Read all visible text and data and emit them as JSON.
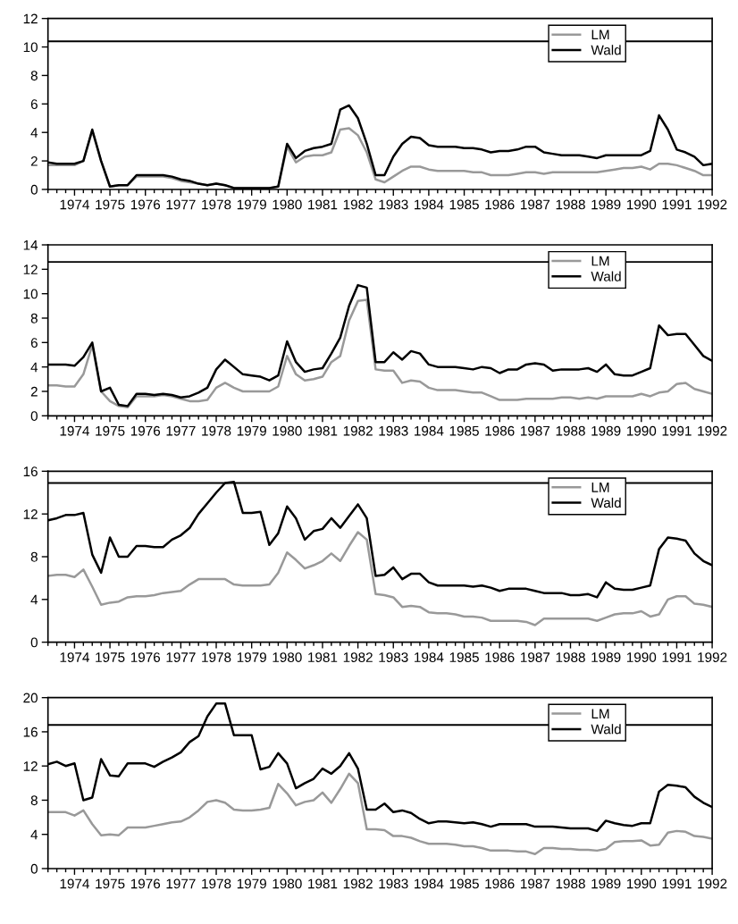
{
  "chart_data": [
    {
      "type": "line",
      "x": [
        1973.25,
        1973.5,
        1973.75,
        1974,
        1974.25,
        1974.5,
        1974.75,
        1975,
        1975.25,
        1975.5,
        1975.75,
        1976,
        1976.25,
        1976.5,
        1976.75,
        1977,
        1977.25,
        1977.5,
        1977.75,
        1978,
        1978.25,
        1978.5,
        1978.75,
        1979,
        1979.25,
        1979.5,
        1979.75,
        1980,
        1980.25,
        1980.5,
        1980.75,
        1981,
        1981.25,
        1981.5,
        1981.75,
        1982,
        1982.25,
        1982.5,
        1982.75,
        1983,
        1983.25,
        1983.5,
        1983.75,
        1984,
        1984.25,
        1984.5,
        1984.75,
        1985,
        1985.25,
        1985.5,
        1985.75,
        1986,
        1986.25,
        1986.5,
        1986.75,
        1987,
        1987.25,
        1987.5,
        1987.75,
        1988,
        1988.25,
        1988.5,
        1988.75,
        1989,
        1989.25,
        1989.5,
        1989.75,
        1990,
        1990.25,
        1990.5,
        1990.75,
        1991,
        1991.25,
        1991.5,
        1991.75,
        1992
      ],
      "series": [
        {
          "name": "LM",
          "color": "#999999",
          "values": [
            1.7,
            1.7,
            1.7,
            1.7,
            2.0,
            4.1,
            2.0,
            0.2,
            0.3,
            0.3,
            0.9,
            0.9,
            0.9,
            0.9,
            0.8,
            0.6,
            0.5,
            0.4,
            0.3,
            0.4,
            0.3,
            0.1,
            0.1,
            0.1,
            0.1,
            0.1,
            0.2,
            3.0,
            1.9,
            2.3,
            2.4,
            2.4,
            2.6,
            4.2,
            4.3,
            3.8,
            2.6,
            0.7,
            0.5,
            0.9,
            1.3,
            1.6,
            1.6,
            1.4,
            1.3,
            1.3,
            1.3,
            1.3,
            1.2,
            1.2,
            1.0,
            1.0,
            1.0,
            1.1,
            1.2,
            1.2,
            1.1,
            1.2,
            1.2,
            1.2,
            1.2,
            1.2,
            1.2,
            1.3,
            1.4,
            1.5,
            1.5,
            1.6,
            1.4,
            1.8,
            1.8,
            1.7,
            1.5,
            1.3,
            1.0,
            1.0
          ]
        },
        {
          "name": "Wald",
          "color": "#000000",
          "values": [
            1.9,
            1.8,
            1.8,
            1.8,
            2.0,
            4.2,
            2.0,
            0.2,
            0.3,
            0.3,
            1.0,
            1.0,
            1.0,
            1.0,
            0.9,
            0.7,
            0.6,
            0.4,
            0.3,
            0.4,
            0.3,
            0.1,
            0.1,
            0.1,
            0.1,
            0.1,
            0.2,
            3.2,
            2.2,
            2.7,
            2.9,
            3.0,
            3.2,
            5.6,
            5.9,
            5.0,
            3.2,
            1.0,
            1.0,
            2.3,
            3.2,
            3.7,
            3.6,
            3.1,
            3.0,
            3.0,
            3.0,
            2.9,
            2.9,
            2.8,
            2.6,
            2.7,
            2.7,
            2.8,
            3.0,
            3.0,
            2.6,
            2.5,
            2.4,
            2.4,
            2.4,
            2.3,
            2.2,
            2.4,
            2.4,
            2.4,
            2.4,
            2.4,
            2.7,
            5.2,
            4.2,
            2.8,
            2.6,
            2.3,
            1.7,
            1.8
          ]
        }
      ],
      "xlim": [
        1973.25,
        1992
      ],
      "xticks": [
        1974,
        1975,
        1976,
        1977,
        1978,
        1979,
        1980,
        1981,
        1982,
        1983,
        1984,
        1985,
        1986,
        1987,
        1988,
        1989,
        1990,
        1991,
        1992
      ],
      "ylim": [
        0,
        12
      ],
      "yticks": [
        0,
        2,
        4,
        6,
        8,
        10,
        12
      ],
      "ref_lines": [
        {
          "axis": "y",
          "value": 10.4,
          "color": "#000000"
        }
      ],
      "legend": "top right",
      "grid": false
    },
    {
      "type": "line",
      "x": [
        1973.25,
        1973.5,
        1973.75,
        1974,
        1974.25,
        1974.5,
        1974.75,
        1975,
        1975.25,
        1975.5,
        1975.75,
        1976,
        1976.25,
        1976.5,
        1976.75,
        1977,
        1977.25,
        1977.5,
        1977.75,
        1978,
        1978.25,
        1978.5,
        1978.75,
        1979,
        1979.25,
        1979.5,
        1979.75,
        1980,
        1980.25,
        1980.5,
        1980.75,
        1981,
        1981.25,
        1981.5,
        1981.75,
        1982,
        1982.25,
        1982.5,
        1982.75,
        1983,
        1983.25,
        1983.5,
        1983.75,
        1984,
        1984.25,
        1984.5,
        1984.75,
        1985,
        1985.25,
        1985.5,
        1985.75,
        1986,
        1986.25,
        1986.5,
        1986.75,
        1987,
        1987.25,
        1987.5,
        1987.75,
        1988,
        1988.25,
        1988.5,
        1988.75,
        1989,
        1989.25,
        1989.5,
        1989.75,
        1990,
        1990.25,
        1990.5,
        1990.75,
        1991,
        1991.25,
        1991.5,
        1991.75,
        1992
      ],
      "series": [
        {
          "name": "LM",
          "color": "#999999",
          "values": [
            2.5,
            2.5,
            2.4,
            2.4,
            3.4,
            5.8,
            2.0,
            1.2,
            0.8,
            0.7,
            1.6,
            1.6,
            1.6,
            1.7,
            1.6,
            1.4,
            1.2,
            1.2,
            1.3,
            2.3,
            2.7,
            2.3,
            2.0,
            2.0,
            2.0,
            2.0,
            2.4,
            4.9,
            3.4,
            2.9,
            3.0,
            3.2,
            4.4,
            4.9,
            7.8,
            9.4,
            9.5,
            3.8,
            3.7,
            3.7,
            2.7,
            2.9,
            2.8,
            2.3,
            2.1,
            2.1,
            2.1,
            2.0,
            1.9,
            1.9,
            1.6,
            1.3,
            1.3,
            1.3,
            1.4,
            1.4,
            1.4,
            1.4,
            1.5,
            1.5,
            1.4,
            1.5,
            1.4,
            1.6,
            1.6,
            1.6,
            1.6,
            1.8,
            1.6,
            1.9,
            2.0,
            2.6,
            2.7,
            2.2,
            2.0,
            1.8
          ]
        },
        {
          "name": "Wald",
          "color": "#000000",
          "values": [
            4.2,
            4.2,
            4.2,
            4.1,
            4.8,
            6.0,
            2.0,
            2.3,
            0.9,
            0.8,
            1.8,
            1.8,
            1.7,
            1.8,
            1.7,
            1.5,
            1.6,
            1.9,
            2.3,
            3.8,
            4.6,
            4.0,
            3.4,
            3.3,
            3.2,
            2.9,
            3.3,
            6.1,
            4.4,
            3.6,
            3.8,
            3.9,
            5.1,
            6.4,
            9.0,
            10.7,
            10.5,
            4.4,
            4.4,
            5.2,
            4.6,
            5.3,
            5.1,
            4.2,
            4.0,
            4.0,
            4.0,
            3.9,
            3.8,
            4.0,
            3.9,
            3.5,
            3.8,
            3.8,
            4.2,
            4.3,
            4.2,
            3.7,
            3.8,
            3.8,
            3.8,
            3.9,
            3.6,
            4.2,
            3.4,
            3.3,
            3.3,
            3.6,
            3.9,
            7.4,
            6.6,
            6.7,
            6.7,
            5.8,
            4.9,
            4.5
          ]
        }
      ],
      "xlim": [
        1973.25,
        1992
      ],
      "xticks": [
        1974,
        1975,
        1976,
        1977,
        1978,
        1979,
        1980,
        1981,
        1982,
        1983,
        1984,
        1985,
        1986,
        1987,
        1988,
        1989,
        1990,
        1991,
        1992
      ],
      "ylim": [
        0,
        14
      ],
      "yticks": [
        0,
        2,
        4,
        6,
        8,
        10,
        12,
        14
      ],
      "ref_lines": [
        {
          "axis": "y",
          "value": 12.6,
          "color": "#000000"
        }
      ],
      "legend": "top right",
      "grid": false
    },
    {
      "type": "line",
      "x": [
        1973.25,
        1973.5,
        1973.75,
        1974,
        1974.25,
        1974.5,
        1974.75,
        1975,
        1975.25,
        1975.5,
        1975.75,
        1976,
        1976.25,
        1976.5,
        1976.75,
        1977,
        1977.25,
        1977.5,
        1977.75,
        1978,
        1978.25,
        1978.5,
        1978.75,
        1979,
        1979.25,
        1979.5,
        1979.75,
        1980,
        1980.25,
        1980.5,
        1980.75,
        1981,
        1981.25,
        1981.5,
        1981.75,
        1982,
        1982.25,
        1982.5,
        1982.75,
        1983,
        1983.25,
        1983.5,
        1983.75,
        1984,
        1984.25,
        1984.5,
        1984.75,
        1985,
        1985.25,
        1985.5,
        1985.75,
        1986,
        1986.25,
        1986.5,
        1986.75,
        1987,
        1987.25,
        1987.5,
        1987.75,
        1988,
        1988.25,
        1988.5,
        1988.75,
        1989,
        1989.25,
        1989.5,
        1989.75,
        1990,
        1990.25,
        1990.5,
        1990.75,
        1991,
        1991.25,
        1991.5,
        1991.75,
        1992
      ],
      "series": [
        {
          "name": "LM",
          "color": "#999999",
          "values": [
            6.2,
            6.3,
            6.3,
            6.1,
            6.8,
            5.2,
            3.5,
            3.7,
            3.8,
            4.2,
            4.3,
            4.3,
            4.4,
            4.6,
            4.7,
            4.8,
            5.4,
            5.9,
            5.9,
            5.9,
            5.9,
            5.4,
            5.3,
            5.3,
            5.3,
            5.4,
            6.5,
            8.4,
            7.7,
            6.9,
            7.2,
            7.6,
            8.3,
            7.6,
            9.0,
            10.3,
            9.6,
            4.5,
            4.4,
            4.2,
            3.3,
            3.4,
            3.3,
            2.8,
            2.7,
            2.7,
            2.6,
            2.4,
            2.4,
            2.3,
            2.0,
            2.0,
            2.0,
            2.0,
            1.9,
            1.6,
            2.2,
            2.2,
            2.2,
            2.2,
            2.2,
            2.2,
            2.0,
            2.3,
            2.6,
            2.7,
            2.7,
            2.9,
            2.4,
            2.6,
            4.0,
            4.3,
            4.3,
            3.6,
            3.5,
            3.3
          ]
        },
        {
          "name": "Wald",
          "color": "#000000",
          "values": [
            11.4,
            11.6,
            11.9,
            11.9,
            12.1,
            8.2,
            6.5,
            9.8,
            8.0,
            8.0,
            9.0,
            9.0,
            8.9,
            8.9,
            9.6,
            10.0,
            10.7,
            12.0,
            13.0,
            14.0,
            14.9,
            15.0,
            12.1,
            12.1,
            12.2,
            9.1,
            10.2,
            12.7,
            11.6,
            9.6,
            10.4,
            10.6,
            11.6,
            10.7,
            11.8,
            12.9,
            11.6,
            6.2,
            6.3,
            7.0,
            5.9,
            6.4,
            6.4,
            5.6,
            5.3,
            5.3,
            5.3,
            5.3,
            5.2,
            5.3,
            5.1,
            4.8,
            5.0,
            5.0,
            5.0,
            4.8,
            4.6,
            4.6,
            4.6,
            4.4,
            4.4,
            4.5,
            4.2,
            5.6,
            5.0,
            4.9,
            4.9,
            5.1,
            5.3,
            8.7,
            9.8,
            9.7,
            9.5,
            8.3,
            7.6,
            7.2
          ]
        }
      ],
      "xlim": [
        1973.25,
        1992
      ],
      "xticks": [
        1974,
        1975,
        1976,
        1977,
        1978,
        1979,
        1980,
        1981,
        1982,
        1983,
        1984,
        1985,
        1986,
        1987,
        1988,
        1989,
        1990,
        1991,
        1992
      ],
      "ylim": [
        0,
        16
      ],
      "yticks": [
        0,
        4,
        8,
        12,
        16
      ],
      "ref_lines": [
        {
          "axis": "y",
          "value": 14.9,
          "color": "#000000"
        }
      ],
      "legend": "top right",
      "grid": false
    },
    {
      "type": "line",
      "x": [
        1973.25,
        1973.5,
        1973.75,
        1974,
        1974.25,
        1974.5,
        1974.75,
        1975,
        1975.25,
        1975.5,
        1975.75,
        1976,
        1976.25,
        1976.5,
        1976.75,
        1977,
        1977.25,
        1977.5,
        1977.75,
        1978,
        1978.25,
        1978.5,
        1978.75,
        1979,
        1979.25,
        1979.5,
        1979.75,
        1980,
        1980.25,
        1980.5,
        1980.75,
        1981,
        1981.25,
        1981.5,
        1981.75,
        1982,
        1982.25,
        1982.5,
        1982.75,
        1983,
        1983.25,
        1983.5,
        1983.75,
        1984,
        1984.25,
        1984.5,
        1984.75,
        1985,
        1985.25,
        1985.5,
        1985.75,
        1986,
        1986.25,
        1986.5,
        1986.75,
        1987,
        1987.25,
        1987.5,
        1987.75,
        1988,
        1988.25,
        1988.5,
        1988.75,
        1989,
        1989.25,
        1989.5,
        1989.75,
        1990,
        1990.25,
        1990.5,
        1990.75,
        1991,
        1991.25,
        1991.5,
        1991.75,
        1992
      ],
      "series": [
        {
          "name": "LM",
          "color": "#999999",
          "values": [
            6.6,
            6.6,
            6.6,
            6.2,
            6.8,
            5.2,
            3.9,
            4.0,
            3.9,
            4.8,
            4.8,
            4.8,
            5.0,
            5.2,
            5.4,
            5.5,
            6.0,
            6.8,
            7.8,
            8.0,
            7.7,
            6.9,
            6.8,
            6.8,
            6.9,
            7.1,
            9.9,
            8.8,
            7.4,
            7.8,
            8.0,
            8.9,
            7.7,
            9.3,
            11.1,
            10.0,
            4.6,
            4.6,
            4.5,
            3.8,
            3.8,
            3.6,
            3.2,
            2.9,
            2.9,
            2.9,
            2.8,
            2.6,
            2.6,
            2.4,
            2.1,
            2.1,
            2.1,
            2.0,
            2.0,
            1.7,
            2.4,
            2.4,
            2.3,
            2.3,
            2.2,
            2.2,
            2.1,
            2.3,
            3.1,
            3.2,
            3.2,
            3.3,
            2.7,
            2.8,
            4.2,
            4.4,
            4.3,
            3.8,
            3.7,
            3.5
          ]
        },
        {
          "name": "Wald",
          "color": "#000000",
          "values": [
            12.2,
            12.5,
            12.0,
            12.3,
            8.0,
            8.3,
            12.8,
            10.9,
            10.8,
            12.3,
            12.3,
            12.3,
            11.9,
            12.5,
            13.0,
            13.6,
            14.8,
            15.5,
            17.8,
            19.3,
            19.3,
            15.6,
            15.6,
            15.6,
            11.6,
            11.9,
            13.5,
            12.3,
            9.4,
            10.0,
            10.5,
            11.7,
            11.1,
            12.0,
            13.5,
            11.7,
            6.9,
            6.9,
            7.6,
            6.6,
            6.8,
            6.5,
            5.8,
            5.3,
            5.5,
            5.5,
            5.4,
            5.3,
            5.4,
            5.2,
            4.9,
            5.2,
            5.2,
            5.2,
            5.2,
            4.9,
            4.9,
            4.9,
            4.8,
            4.7,
            4.7,
            4.7,
            4.4,
            5.6,
            5.3,
            5.1,
            5.0,
            5.3,
            5.3,
            9.0,
            9.8,
            9.7,
            9.5,
            8.4,
            7.7,
            7.2
          ]
        }
      ],
      "xlim": [
        1973.25,
        1992
      ],
      "xticks": [
        1974,
        1975,
        1976,
        1977,
        1978,
        1979,
        1980,
        1981,
        1982,
        1983,
        1984,
        1985,
        1986,
        1987,
        1988,
        1989,
        1990,
        1991,
        1992
      ],
      "ylim": [
        0,
        20
      ],
      "yticks": [
        0,
        4,
        8,
        12,
        16,
        20
      ],
      "ref_lines": [
        {
          "axis": "y",
          "value": 16.8,
          "color": "#000000"
        }
      ],
      "legend": "top right",
      "grid": false
    }
  ]
}
